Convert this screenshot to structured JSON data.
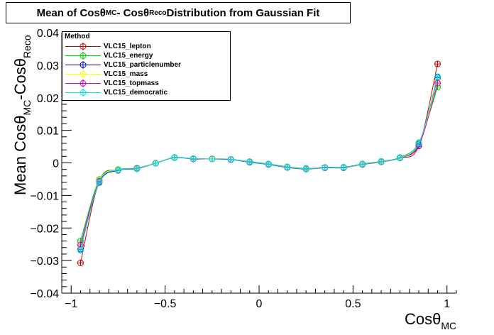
{
  "title": {
    "prefix": "Mean of Cos",
    "theta": "θ",
    "sub_mc": "MC",
    "middle": " - Cos",
    "sub_reco": "Reco",
    "suffix": " Distribution from Gaussian Fit"
  },
  "legend": {
    "header": "Method"
  },
  "axes": {
    "xlabel": {
      "main": "Cosθ",
      "sub": "MC"
    },
    "ylabel": {
      "main1": "Mean Cosθ",
      "sub1": "MC",
      "main2": "-Cosθ",
      "sub2": "Reco"
    }
  },
  "chart_data": {
    "type": "line",
    "xlim": [
      -1.05,
      1.05
    ],
    "ylim": [
      -0.04,
      0.04
    ],
    "grid": false,
    "legend_position": "top-left",
    "x_ticks": [
      -1,
      -0.5,
      0,
      0.5,
      1
    ],
    "x_tick_labels": [
      "−1",
      "−0.5",
      "0",
      "0.5",
      "1"
    ],
    "y_ticks": [
      -0.04,
      -0.03,
      -0.02,
      -0.01,
      0,
      0.01,
      0.02,
      0.03,
      0.04
    ],
    "y_tick_labels": [
      "−0.04",
      "−0.03",
      "−0.02",
      "−0.01",
      "0",
      "0.01",
      "0.02",
      "0.03",
      "0.04"
    ],
    "x": [
      -0.95,
      -0.85,
      -0.75,
      -0.65,
      -0.55,
      -0.45,
      -0.35,
      -0.25,
      -0.15,
      -0.05,
      0.05,
      0.15,
      0.25,
      0.35,
      0.45,
      0.55,
      0.65,
      0.75,
      0.85,
      0.95
    ],
    "series": [
      {
        "name": "VLC15_lepton",
        "color": "#cc0000",
        "values": [
          -0.0307,
          -0.0055,
          -0.0022,
          -0.0018,
          -0.0001,
          0.0016,
          0.0013,
          0.0013,
          0.0011,
          0.0003,
          -0.0004,
          -0.0013,
          -0.0018,
          -0.0014,
          -0.0014,
          -0.0005,
          0.0003,
          0.0015,
          0.0052,
          0.0304
        ]
      },
      {
        "name": "VLC15_energy",
        "color": "#00cc00",
        "values": [
          -0.024,
          -0.0051,
          -0.002,
          -0.0016,
          0.0,
          0.0017,
          0.0013,
          0.0013,
          0.0011,
          0.0004,
          -0.0003,
          -0.0012,
          -0.0017,
          -0.0014,
          -0.0013,
          -0.0003,
          0.0005,
          0.0017,
          0.0062,
          0.0233
        ]
      },
      {
        "name": "VLC15_particlenumber",
        "color": "#0000cc",
        "values": [
          -0.0265,
          -0.006,
          -0.0023,
          -0.0018,
          -0.0001,
          0.0016,
          0.0012,
          0.0012,
          0.001,
          0.0002,
          -0.0005,
          -0.0014,
          -0.0019,
          -0.0015,
          -0.0015,
          -0.0004,
          0.0004,
          0.0016,
          0.0058,
          0.0262
        ]
      },
      {
        "name": "VLC15_mass",
        "color": "#ffff00",
        "values": [
          -0.0255,
          -0.0054,
          -0.0021,
          -0.0017,
          0.0,
          0.0016,
          0.0013,
          0.0013,
          0.0011,
          0.0003,
          -0.0004,
          -0.0013,
          -0.0018,
          -0.0014,
          -0.0014,
          -0.0004,
          0.0004,
          0.0016,
          0.006,
          0.025
        ]
      },
      {
        "name": "VLC15_topmass",
        "color": "#cc00cc",
        "values": [
          -0.0252,
          -0.0056,
          -0.0022,
          -0.0017,
          -0.0001,
          0.0016,
          0.0013,
          0.0012,
          0.0011,
          0.0003,
          -0.0004,
          -0.0013,
          -0.0018,
          -0.0014,
          -0.0014,
          -0.0004,
          0.0004,
          0.0016,
          0.0053,
          0.0245
        ]
      },
      {
        "name": "VLC15_democratic",
        "color": "#00e5e5",
        "values": [
          -0.0268,
          -0.0058,
          -0.0022,
          -0.0018,
          -0.0001,
          0.0016,
          0.0013,
          0.0012,
          0.0011,
          0.0003,
          -0.0004,
          -0.0013,
          -0.0018,
          -0.0014,
          -0.0014,
          -0.0004,
          0.0004,
          0.0016,
          0.006,
          0.0265
        ]
      }
    ]
  }
}
